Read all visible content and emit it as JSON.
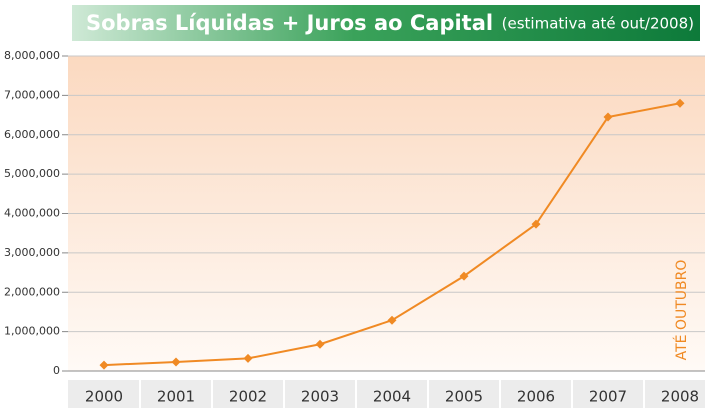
{
  "chart_data": {
    "type": "line",
    "title": "Sobras Líquidas + Juros ao Capital",
    "subtitle": "(estimativa até out/2008)",
    "annotation": "ATÉ OUTUBRO",
    "categories": [
      "2000",
      "2001",
      "2002",
      "2003",
      "2004",
      "2005",
      "2006",
      "2007",
      "2008"
    ],
    "series": [
      {
        "name": "Sobras Líquidas + Juros ao Capital",
        "color": "#f08a24",
        "values": [
          150000,
          230000,
          320000,
          680000,
          1290000,
          2410000,
          3730000,
          6450000,
          6800000
        ]
      }
    ],
    "ylim": [
      0,
      8000000
    ],
    "yticks": [
      0,
      {
        "value": 1000000,
        "label": "1,000,000"
      },
      {
        "value": 2000000,
        "label": "2,000,000"
      },
      {
        "value": 3000000,
        "label": "3,000,000"
      },
      {
        "value": 4000000,
        "label": "4,000,000"
      },
      {
        "value": 5000000,
        "label": "5,000,000"
      },
      {
        "value": 6000000,
        "label": "6,000,000"
      },
      {
        "value": 7000000,
        "label": "7,000,000"
      },
      {
        "value": 8000000,
        "label": "8,000,000"
      }
    ],
    "grid": true
  }
}
